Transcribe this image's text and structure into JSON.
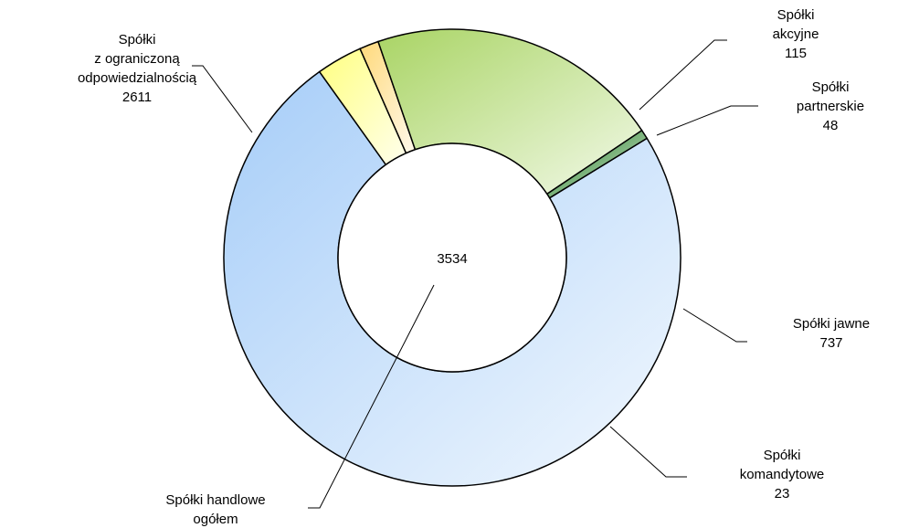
{
  "chart_data": {
    "type": "pie",
    "variant": "donut",
    "center_label": "3534",
    "center_callout": "Spółki handlowe ogółem",
    "slices": [
      {
        "label": "Spółki z ograniczoną odpowiedzialnością",
        "value": 2611,
        "color": "#a6cdf8"
      },
      {
        "label": "Spółki akcyjne",
        "value": 115,
        "color": "#ffff80"
      },
      {
        "label": "Spółki partnerskie",
        "value": 48,
        "color": "#ffd97a"
      },
      {
        "label": "Spółki jawne",
        "value": 737,
        "color": "#a9d464"
      },
      {
        "label": "Spółki komandytowe",
        "value": 23,
        "color": "#1a7a1a"
      }
    ],
    "legend": "none"
  }
}
